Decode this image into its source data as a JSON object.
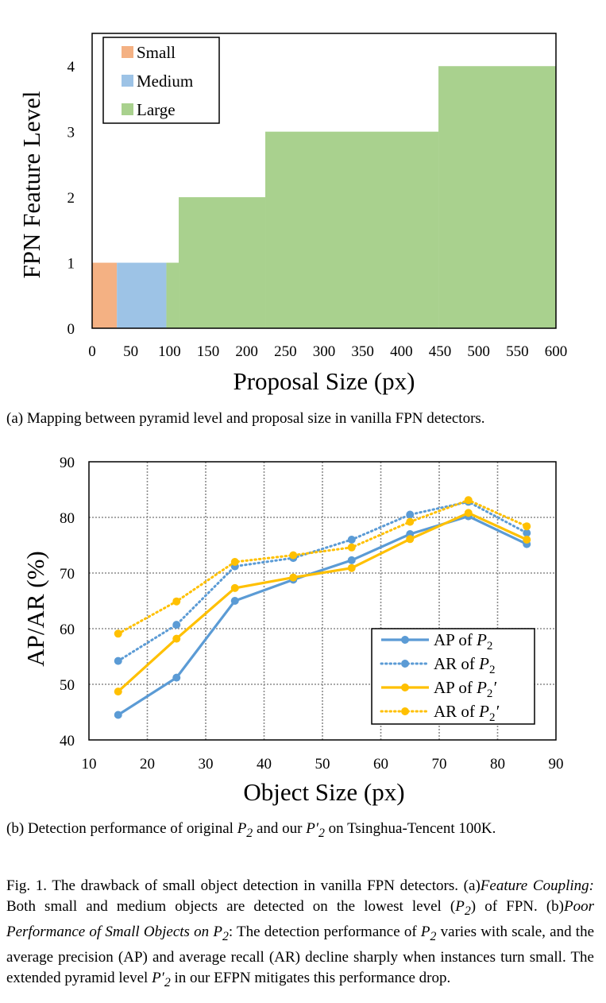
{
  "chart_data": [
    {
      "type": "area",
      "xlabel": "Proposal Size (px)",
      "ylabel": "FPN Feature Level",
      "xlim": [
        0,
        600
      ],
      "ylim": [
        0,
        4.5
      ],
      "xticks": [
        "0",
        "50",
        "100",
        "150",
        "200",
        "250",
        "300",
        "350",
        "400",
        "450",
        "500",
        "550",
        "600"
      ],
      "yticks": [
        "0",
        "1",
        "2",
        "3",
        "4"
      ],
      "grid": false,
      "legend_position": "top-left",
      "series": [
        {
          "name": "Small",
          "color": "#F4B183",
          "steps": [
            {
              "x0": 0,
              "x1": 32,
              "level": 1
            }
          ]
        },
        {
          "name": "Medium",
          "color": "#9DC3E6",
          "steps": [
            {
              "x0": 32,
              "x1": 96,
              "level": 1
            }
          ]
        },
        {
          "name": "Large",
          "color": "#A9D18E",
          "steps": [
            {
              "x0": 96,
              "x1": 112,
              "level": 1
            },
            {
              "x0": 112,
              "x1": 224,
              "level": 2
            },
            {
              "x0": 224,
              "x1": 448,
              "level": 3
            },
            {
              "x0": 448,
              "x1": 600,
              "level": 4
            }
          ]
        }
      ]
    },
    {
      "type": "line",
      "xlabel": "Object Size (px)",
      "ylabel": "AP/AR (%)",
      "xlim": [
        10,
        90
      ],
      "ylim": [
        40,
        90
      ],
      "xticks": [
        "10",
        "20",
        "30",
        "40",
        "50",
        "60",
        "70",
        "80",
        "90"
      ],
      "yticks": [
        "40",
        "50",
        "60",
        "70",
        "80",
        "90"
      ],
      "grid": true,
      "legend_position": "bottom-right",
      "x": [
        15,
        25,
        35,
        45,
        55,
        65,
        75,
        85
      ],
      "series": [
        {
          "name": "AP of P2",
          "color": "#5B9BD5",
          "style": "solid",
          "values": [
            44.5,
            51.2,
            65.0,
            68.8,
            72.3,
            77.0,
            80.2,
            75.2
          ]
        },
        {
          "name": "AR of P2",
          "color": "#5B9BD5",
          "style": "dotted",
          "values": [
            54.2,
            60.7,
            71.2,
            72.7,
            76.0,
            80.5,
            82.8,
            77.2
          ]
        },
        {
          "name": "AP of P2'",
          "color": "#FFC000",
          "style": "solid",
          "values": [
            48.7,
            58.2,
            67.3,
            69.2,
            70.9,
            76.1,
            80.8,
            76.0
          ]
        },
        {
          "name": "AR of P2'",
          "color": "#FFC000",
          "style": "dotted",
          "values": [
            59.1,
            64.9,
            72.0,
            73.2,
            74.6,
            79.2,
            83.1,
            78.4
          ]
        }
      ]
    }
  ],
  "legend_a": [
    "Small",
    "Medium",
    "Large"
  ],
  "legend_b": [
    {
      "prefix": "AP of ",
      "sub": "2",
      "prime": ""
    },
    {
      "prefix": "AR of ",
      "sub": "2",
      "prime": ""
    },
    {
      "prefix": "AP of ",
      "sub": "2",
      "prime": "′"
    },
    {
      "prefix": "AR of ",
      "sub": "2",
      "prime": "′"
    }
  ],
  "captions": {
    "a": "(a)  Mapping between pyramid level and proposal size in vanilla FPN detectors.",
    "b_1": "(b)  Detection performance of original ",
    "b_2": " and our ",
    "b_3": " on Tsinghua-Tencent 100K.",
    "fig_1": "Fig. 1.   The drawback of small object detection in vanilla FPN detectors. (a)",
    "fig_2": "Feature Coupling:",
    "fig_3": " Both small and medium objects are detected on the lowest level (",
    "fig_4": ") of FPN. (b)",
    "fig_5": "Poor Performance of Small Objects on ",
    "fig_6": ": The detection performance of ",
    "fig_7": " varies with scale, and the average precision (AP) and average recall (AR) decline sharply when instances turn small. The extended pyramid level ",
    "fig_8": " in our EFPN mitigates this performance drop."
  }
}
